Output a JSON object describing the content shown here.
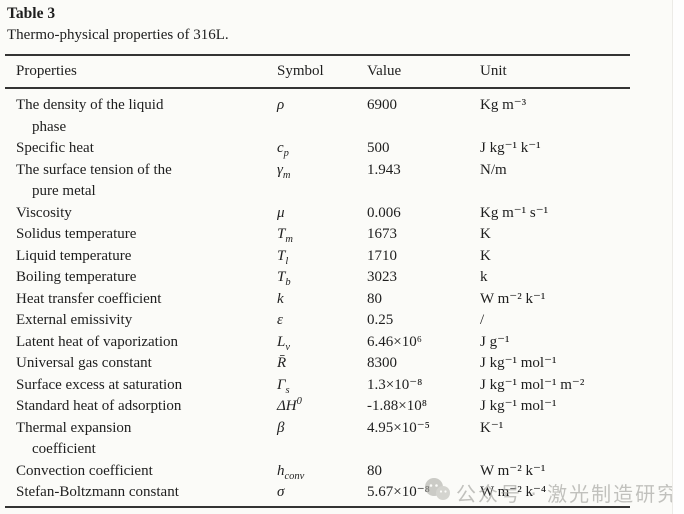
{
  "caption": {
    "label": "Table 3",
    "subtitle": "Thermo-physical properties of 316L."
  },
  "table": {
    "headers": [
      "Properties",
      "Symbol",
      "Value",
      "Unit"
    ],
    "rows": [
      {
        "property": "The density of the liquid",
        "property2": "phase",
        "sym": "ρ",
        "sub": "",
        "sup": "",
        "value": "6900",
        "unit": "Kg m⁻³"
      },
      {
        "property": "Specific heat",
        "property2": "",
        "sym": "c",
        "sub": "p",
        "sup": "",
        "value": "500",
        "unit": "J kg⁻¹ k⁻¹"
      },
      {
        "property": "The surface tension of the",
        "property2": "pure metal",
        "sym": "γ",
        "sub": "m",
        "sup": "",
        "value": "1.943",
        "unit": "N/m"
      },
      {
        "property": "Viscosity",
        "property2": "",
        "sym": "μ",
        "sub": "",
        "sup": "",
        "value": "0.006",
        "unit": "Kg m⁻¹ s⁻¹"
      },
      {
        "property": "Solidus temperature",
        "property2": "",
        "sym": "T",
        "sub": "m",
        "sup": "",
        "value": "1673",
        "unit": "K"
      },
      {
        "property": "Liquid temperature",
        "property2": "",
        "sym": "T",
        "sub": "l",
        "sup": "",
        "value": "1710",
        "unit": "K"
      },
      {
        "property": "Boiling temperature",
        "property2": "",
        "sym": "T",
        "sub": "b",
        "sup": "",
        "value": "3023",
        "unit": "k"
      },
      {
        "property": "Heat transfer coefficient",
        "property2": "",
        "sym": "k",
        "sub": "",
        "sup": "",
        "value": "80",
        "unit": "W m⁻² k⁻¹"
      },
      {
        "property": "External emissivity",
        "property2": "",
        "sym": "ε",
        "sub": "",
        "sup": "",
        "value": "0.25",
        "unit": "/"
      },
      {
        "property": "Latent heat of vaporization",
        "property2": "",
        "sym": "L",
        "sub": "v",
        "sup": "",
        "value": "6.46×10⁶",
        "unit": "J g⁻¹"
      },
      {
        "property": "Universal gas constant",
        "property2": "",
        "sym": "R̄",
        "sub": "",
        "sup": "",
        "value": "8300",
        "unit": "J kg⁻¹ mol⁻¹"
      },
      {
        "property": "Surface excess at saturation",
        "property2": "",
        "sym": "Γ",
        "sub": "s",
        "sup": "",
        "value": "1.3×10⁻⁸",
        "unit": "J kg⁻¹ mol⁻¹ m⁻²"
      },
      {
        "property": "Standard heat of adsorption",
        "property2": "",
        "sym": "ΔH",
        "sub": "",
        "sup": "0",
        "value": "-1.88×10⁸",
        "unit": "J kg⁻¹ mol⁻¹"
      },
      {
        "property": "Thermal expansion",
        "property2": "coefficient",
        "sym": "β",
        "sub": "",
        "sup": "",
        "value": "4.95×10⁻⁵",
        "unit": "K⁻¹"
      },
      {
        "property": "Convection coefficient",
        "property2": "",
        "sym": "h",
        "sub": "conv",
        "sup": "",
        "value": "80",
        "unit": "W m⁻² k⁻¹"
      },
      {
        "property": "Stefan-Boltzmann constant",
        "property2": "",
        "sym": "σ",
        "sub": "",
        "sup": "",
        "value": "5.67×10⁻⁸",
        "unit": "W m⁻² k⁻⁴"
      }
    ]
  },
  "watermark": {
    "text": "公众号 · 激光制造研究",
    "icon": "wechat-icon",
    "color": "#9f9f9a"
  }
}
